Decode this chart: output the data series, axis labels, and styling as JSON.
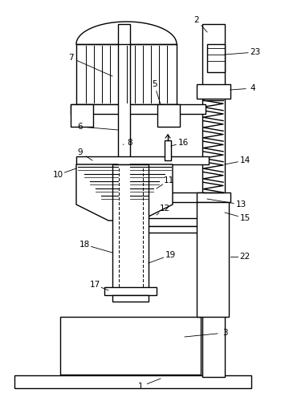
{
  "background_color": "#ffffff",
  "line_color": "#000000",
  "label_color": "#000000",
  "lw": 1.0
}
